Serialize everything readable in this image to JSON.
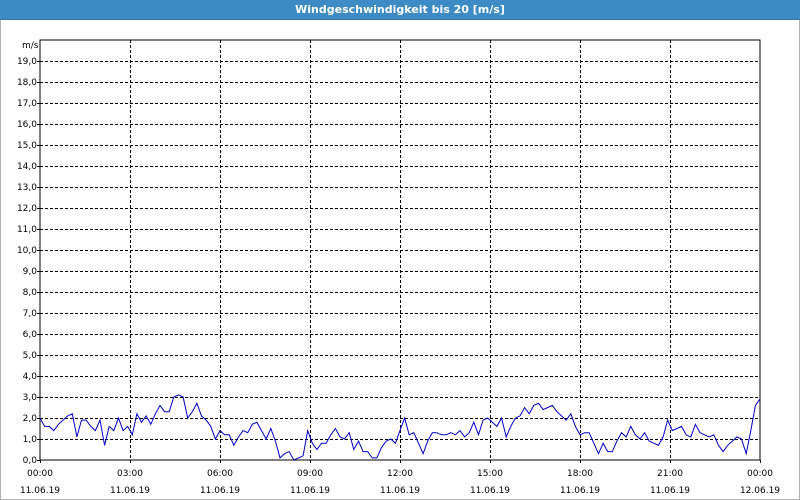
{
  "window": {
    "title": "Windgeschwindigkeit bis 20 [m/s]"
  },
  "colors": {
    "titlebar": "#3d8bc4",
    "series": "#0000c8",
    "grid": "#000000"
  },
  "chart_data": {
    "type": "line",
    "title": "Windgeschwindigkeit bis 20 [m/s]",
    "ylabel": "m/s",
    "xlabel": "",
    "ylim": [
      0,
      20
    ],
    "xlim_hours": [
      0,
      24
    ],
    "grid": true,
    "y_ticks": [
      "0,0",
      "1,0",
      "2,0",
      "3,0",
      "4,0",
      "5,0",
      "6,0",
      "7,0",
      "8,0",
      "9,0",
      "10,0",
      "11,0",
      "12,0",
      "13,0",
      "14,0",
      "15,0",
      "16,0",
      "17,0",
      "18,0",
      "19,0"
    ],
    "x_ticks": [
      {
        "time": "00:00",
        "date": "11.06.19"
      },
      {
        "time": "03:00",
        "date": "11.06.19"
      },
      {
        "time": "06:00",
        "date": "11.06.19"
      },
      {
        "time": "09:00",
        "date": "11.06.19"
      },
      {
        "time": "12:00",
        "date": "11.06.19"
      },
      {
        "time": "15:00",
        "date": "11.06.19"
      },
      {
        "time": "18:00",
        "date": "11.06.19"
      },
      {
        "time": "21:00",
        "date": "11.06.19"
      },
      {
        "time": "00:00",
        "date": "12.06.19"
      }
    ],
    "series": [
      {
        "values": [
          2.0,
          1.6,
          1.6,
          1.4,
          1.7,
          1.9,
          2.1,
          2.2,
          1.1,
          1.9,
          1.9,
          1.6,
          1.4,
          1.9,
          0.7,
          1.6,
          1.4,
          2.0,
          1.4,
          1.6,
          1.2,
          2.2,
          1.8,
          2.1,
          1.7,
          2.2,
          2.6,
          2.3,
          2.3,
          3.0,
          3.1,
          3.0,
          2.0,
          2.3,
          2.7,
          2.1,
          1.9,
          1.6,
          1.0,
          1.4,
          1.2,
          1.2,
          0.7,
          1.1,
          1.4,
          1.3,
          1.7,
          1.8,
          1.4,
          1.0,
          1.5,
          0.9,
          0.1,
          0.3,
          0.4,
          0.0,
          0.1,
          0.2,
          1.4,
          0.8,
          0.5,
          0.8,
          0.8,
          1.2,
          1.5,
          1.1,
          1.0,
          1.3,
          0.5,
          0.9,
          0.4,
          0.4,
          0.1,
          0.1,
          0.6,
          0.9,
          1.0,
          0.8,
          1.4,
          2.0,
          1.2,
          1.3,
          0.8,
          0.3,
          0.9,
          1.3,
          1.3,
          1.2,
          1.2,
          1.3,
          1.2,
          1.4,
          1.1,
          1.3,
          1.8,
          1.2,
          1.9,
          2.0,
          1.8,
          1.6,
          2.0,
          1.1,
          1.6,
          2.0,
          2.1,
          2.5,
          2.2,
          2.6,
          2.7,
          2.4,
          2.5,
          2.6,
          2.3,
          2.1,
          1.9,
          2.2,
          1.6,
          1.2,
          1.3,
          1.3,
          0.8,
          0.3,
          0.8,
          0.4,
          0.4,
          0.9,
          1.3,
          1.1,
          1.6,
          1.2,
          1.0,
          1.3,
          0.9,
          0.8,
          0.7,
          1.1,
          1.9,
          1.4,
          1.5,
          1.6,
          1.2,
          1.1,
          1.7,
          1.3,
          1.2,
          1.1,
          1.2,
          0.7,
          0.4,
          0.7,
          0.9,
          1.1,
          1.0,
          0.3,
          1.4,
          2.6,
          2.9
        ]
      }
    ]
  }
}
